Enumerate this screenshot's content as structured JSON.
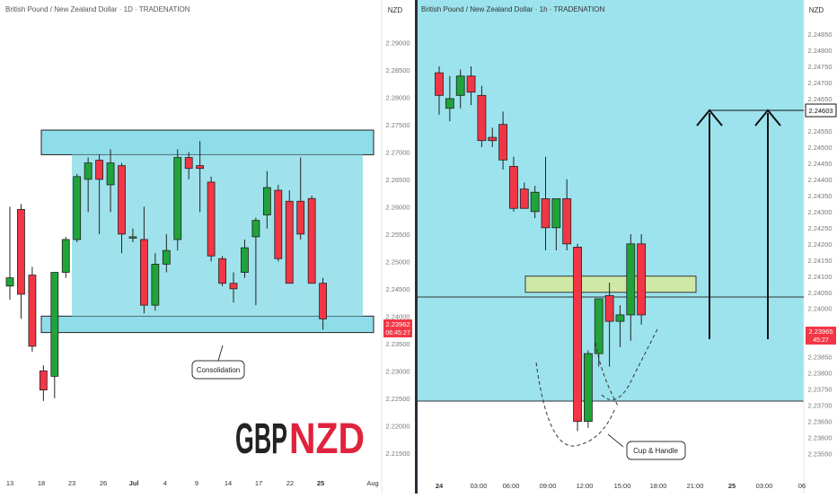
{
  "charts": [
    {
      "id": "left",
      "title": "British Pound / New Zealand Dollar · 1D · TRADENATION",
      "currency": "NZD",
      "price_tag": {
        "price": "2.23962",
        "countdown": "06:45:27"
      },
      "annotation": "Consolidation",
      "watermark": {
        "part1": "GBP",
        "part2": "NZD"
      }
    },
    {
      "id": "right",
      "title": "British Pound / New Zealand Dollar · 1h · TRADENATION",
      "currency": "NZD",
      "target_tag": "2.24603",
      "price_tag": {
        "price": "2.23965",
        "countdown": "45:27"
      },
      "annotation": "Cup & Handle"
    }
  ],
  "chart_data": [
    {
      "type": "candlestick",
      "title": "British Pound / New Zealand Dollar · 1D · TRADENATION",
      "y_axis_label": "NZD",
      "ylim": [
        2.2125,
        2.2945
      ],
      "y_ticks": [
        "2.29000",
        "2.28500",
        "2.28000",
        "2.27500",
        "2.27000",
        "2.26500",
        "2.26000",
        "2.25500",
        "2.25000",
        "2.24500",
        "2.24000",
        "2.23500",
        "2.23000",
        "2.22500",
        "2.22000",
        "2.21500"
      ],
      "x_ticks": [
        "13",
        "18",
        "23",
        "26",
        "Jul",
        "4",
        "9",
        "14",
        "17",
        "22",
        "25",
        "Aug"
      ],
      "candles": [
        {
          "o": 2.2455,
          "h": 2.26,
          "l": 2.243,
          "c": 2.247
        },
        {
          "o": 2.2595,
          "h": 2.2605,
          "l": 2.2395,
          "c": 2.244
        },
        {
          "o": 2.2475,
          "h": 2.249,
          "l": 2.2335,
          "c": 2.2345
        },
        {
          "o": 2.23,
          "h": 2.231,
          "l": 2.2245,
          "c": 2.2265
        },
        {
          "o": 2.229,
          "h": 2.248,
          "l": 2.225,
          "c": 2.248
        },
        {
          "o": 2.248,
          "h": 2.2545,
          "l": 2.247,
          "c": 2.254
        },
        {
          "o": 2.254,
          "h": 2.266,
          "l": 2.2535,
          "c": 2.2655
        },
        {
          "o": 2.265,
          "h": 2.269,
          "l": 2.259,
          "c": 2.268
        },
        {
          "o": 2.2685,
          "h": 2.2695,
          "l": 2.255,
          "c": 2.265
        },
        {
          "o": 2.264,
          "h": 2.2705,
          "l": 2.259,
          "c": 2.268
        },
        {
          "o": 2.2675,
          "h": 2.268,
          "l": 2.2515,
          "c": 2.255
        },
        {
          "o": 2.2545,
          "h": 2.256,
          "l": 2.2535,
          "c": 2.2545
        },
        {
          "o": 2.254,
          "h": 2.26,
          "l": 2.2405,
          "c": 2.242
        },
        {
          "o": 2.242,
          "h": 2.2515,
          "l": 2.241,
          "c": 2.2495
        },
        {
          "o": 2.2495,
          "h": 2.255,
          "l": 2.248,
          "c": 2.252
        },
        {
          "o": 2.254,
          "h": 2.2705,
          "l": 2.252,
          "c": 2.269
        },
        {
          "o": 2.269,
          "h": 2.27,
          "l": 2.265,
          "c": 2.267
        },
        {
          "o": 2.2675,
          "h": 2.272,
          "l": 2.259,
          "c": 2.267
        },
        {
          "o": 2.2645,
          "h": 2.2655,
          "l": 2.25,
          "c": 2.251
        },
        {
          "o": 2.2505,
          "h": 2.251,
          "l": 2.2455,
          "c": 2.246
        },
        {
          "o": 2.246,
          "h": 2.248,
          "l": 2.2425,
          "c": 2.245
        },
        {
          "o": 2.248,
          "h": 2.254,
          "l": 2.247,
          "c": 2.2525
        },
        {
          "o": 2.2545,
          "h": 2.258,
          "l": 2.242,
          "c": 2.2575
        },
        {
          "o": 2.2585,
          "h": 2.2665,
          "l": 2.256,
          "c": 2.2635
        },
        {
          "o": 2.263,
          "h": 2.264,
          "l": 2.25,
          "c": 2.2505
        },
        {
          "o": 2.261,
          "h": 2.263,
          "l": 2.2465,
          "c": 2.246
        },
        {
          "o": 2.261,
          "h": 2.269,
          "l": 2.254,
          "c": 2.255
        },
        {
          "o": 2.2615,
          "h": 2.262,
          "l": 2.246,
          "c": 2.246
        },
        {
          "o": 2.246,
          "h": 2.247,
          "l": 2.2375,
          "c": 2.2395
        }
      ],
      "zones": [
        {
          "label": "resistance",
          "y1": 2.2695,
          "y2": 2.274
        },
        {
          "label": "support",
          "y1": 2.237,
          "y2": 2.24
        },
        {
          "label": "range",
          "y1": 2.24,
          "y2": 2.2695
        }
      ]
    },
    {
      "type": "candlestick",
      "title": "British Pound / New Zealand Dollar · 1h · TRADENATION",
      "y_axis_label": "NZD",
      "ylim": [
        2.2351,
        2.249
      ],
      "y_ticks": [
        "2.24850",
        "2.24800",
        "2.24750",
        "2.24700",
        "2.24650",
        "2.24550",
        "2.24500",
        "2.24450",
        "2.24400",
        "2.24350",
        "2.24300",
        "2.24250",
        "2.24200",
        "2.24150",
        "2.24100",
        "2.24050",
        "2.24000",
        "2.23900",
        "2.23850",
        "2.23800",
        "2.23750",
        "2.23700",
        "2.23650",
        "2.23600",
        "2.23550"
      ],
      "x_ticks": [
        "24",
        "03:00",
        "06:00",
        "09:00",
        "12:00",
        "15:00",
        "18:00",
        "21:00",
        "25",
        "03:00",
        "06"
      ],
      "target": 2.24603,
      "candles": [
        {
          "o": 2.2473,
          "h": 2.2475,
          "l": 2.246,
          "c": 2.2466
        },
        {
          "o": 2.2462,
          "h": 2.2472,
          "l": 2.2458,
          "c": 2.2465
        },
        {
          "o": 2.2466,
          "h": 2.2474,
          "l": 2.2462,
          "c": 2.2472
        },
        {
          "o": 2.2472,
          "h": 2.2475,
          "l": 2.2463,
          "c": 2.2467
        },
        {
          "o": 2.2466,
          "h": 2.2469,
          "l": 2.245,
          "c": 2.2452
        },
        {
          "o": 2.2453,
          "h": 2.2456,
          "l": 2.245,
          "c": 2.2452
        },
        {
          "o": 2.2457,
          "h": 2.2461,
          "l": 2.2443,
          "c": 2.2446
        },
        {
          "o": 2.2444,
          "h": 2.2447,
          "l": 2.243,
          "c": 2.2431
        },
        {
          "o": 2.2437,
          "h": 2.2439,
          "l": 2.2431,
          "c": 2.2431
        },
        {
          "o": 2.243,
          "h": 2.2438,
          "l": 2.2428,
          "c": 2.2436
        },
        {
          "o": 2.2434,
          "h": 2.2447,
          "l": 2.2418,
          "c": 2.2425
        },
        {
          "o": 2.2425,
          "h": 2.2434,
          "l": 2.2418,
          "c": 2.2434
        },
        {
          "o": 2.2434,
          "h": 2.244,
          "l": 2.2418,
          "c": 2.242
        },
        {
          "o": 2.2419,
          "h": 2.242,
          "l": 2.2362,
          "c": 2.2365
        },
        {
          "o": 2.2365,
          "h": 2.2387,
          "l": 2.2363,
          "c": 2.2386
        },
        {
          "o": 2.2386,
          "h": 2.2403,
          "l": 2.2382,
          "c": 2.2403
        },
        {
          "o": 2.2404,
          "h": 2.2408,
          "l": 2.2382,
          "c": 2.2396
        },
        {
          "o": 2.2396,
          "h": 2.2401,
          "l": 2.2388,
          "c": 2.2398
        },
        {
          "o": 2.2398,
          "h": 2.2423,
          "l": 2.239,
          "c": 2.242
        },
        {
          "o": 2.242,
          "h": 2.2423,
          "l": 2.2395,
          "c": 2.2398
        }
      ],
      "zones": [
        {
          "label": "key-level",
          "y1": 2.2405,
          "y2": 2.241
        }
      ]
    }
  ]
}
